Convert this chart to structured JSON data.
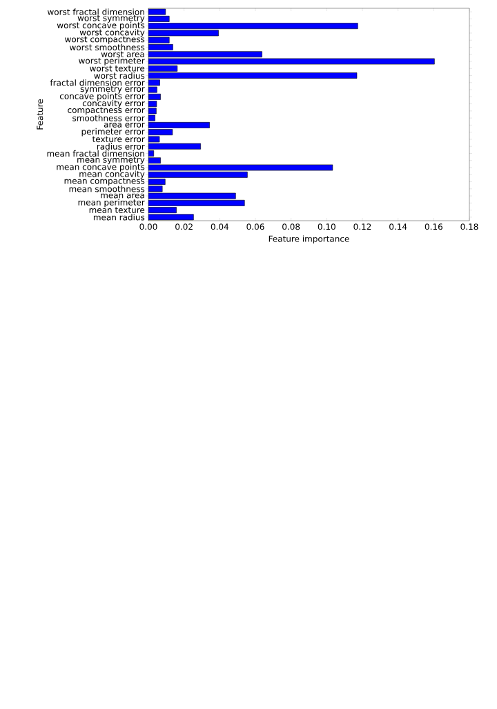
{
  "chart_data": {
    "type": "bar",
    "orientation": "horizontal",
    "xlabel": "Feature importance",
    "ylabel": "Feature",
    "color": "#0000ff",
    "categories": [
      "worst fractal dimension",
      "worst symmetry",
      "worst concave points",
      "worst concavity",
      "worst compactness",
      "worst smoothness",
      "worst area",
      "worst perimeter",
      "worst texture",
      "worst radius",
      "fractal dimension error",
      "symmetry error",
      "concave points error",
      "concavity error",
      "compactness error",
      "smoothness error",
      "area error",
      "perimeter error",
      "texture error",
      "radius error",
      "mean fractal dimension",
      "mean symmetry",
      "mean concave points",
      "mean concavity",
      "mean compactness",
      "mean smoothness",
      "mean area",
      "mean perimeter",
      "mean texture",
      "mean radius"
    ],
    "values": [
      0.0096,
      0.0117,
      0.1174,
      0.0393,
      0.0117,
      0.0137,
      0.0637,
      0.1604,
      0.0162,
      0.1169,
      0.0064,
      0.0048,
      0.0068,
      0.0046,
      0.0044,
      0.0037,
      0.0343,
      0.0135,
      0.0062,
      0.0293,
      0.003,
      0.0068,
      0.1033,
      0.0555,
      0.0094,
      0.0078,
      0.0489,
      0.0539,
      0.0157,
      0.0253
    ],
    "xlim": [
      0,
      0.18
    ],
    "xticks": [
      {
        "value": 0,
        "label": "0.00"
      },
      {
        "value": 0.02,
        "label": "0.02"
      },
      {
        "value": 0.04,
        "label": "0.04"
      },
      {
        "value": 0.06,
        "label": "0.06"
      },
      {
        "value": 0.08,
        "label": "0.08"
      },
      {
        "value": 0.1,
        "label": "0.10"
      },
      {
        "value": 0.12,
        "label": "0.12"
      },
      {
        "value": 0.14,
        "label": "0.14"
      },
      {
        "value": 0.16,
        "label": "0.16"
      },
      {
        "value": 0.18,
        "label": "0.18"
      }
    ]
  }
}
